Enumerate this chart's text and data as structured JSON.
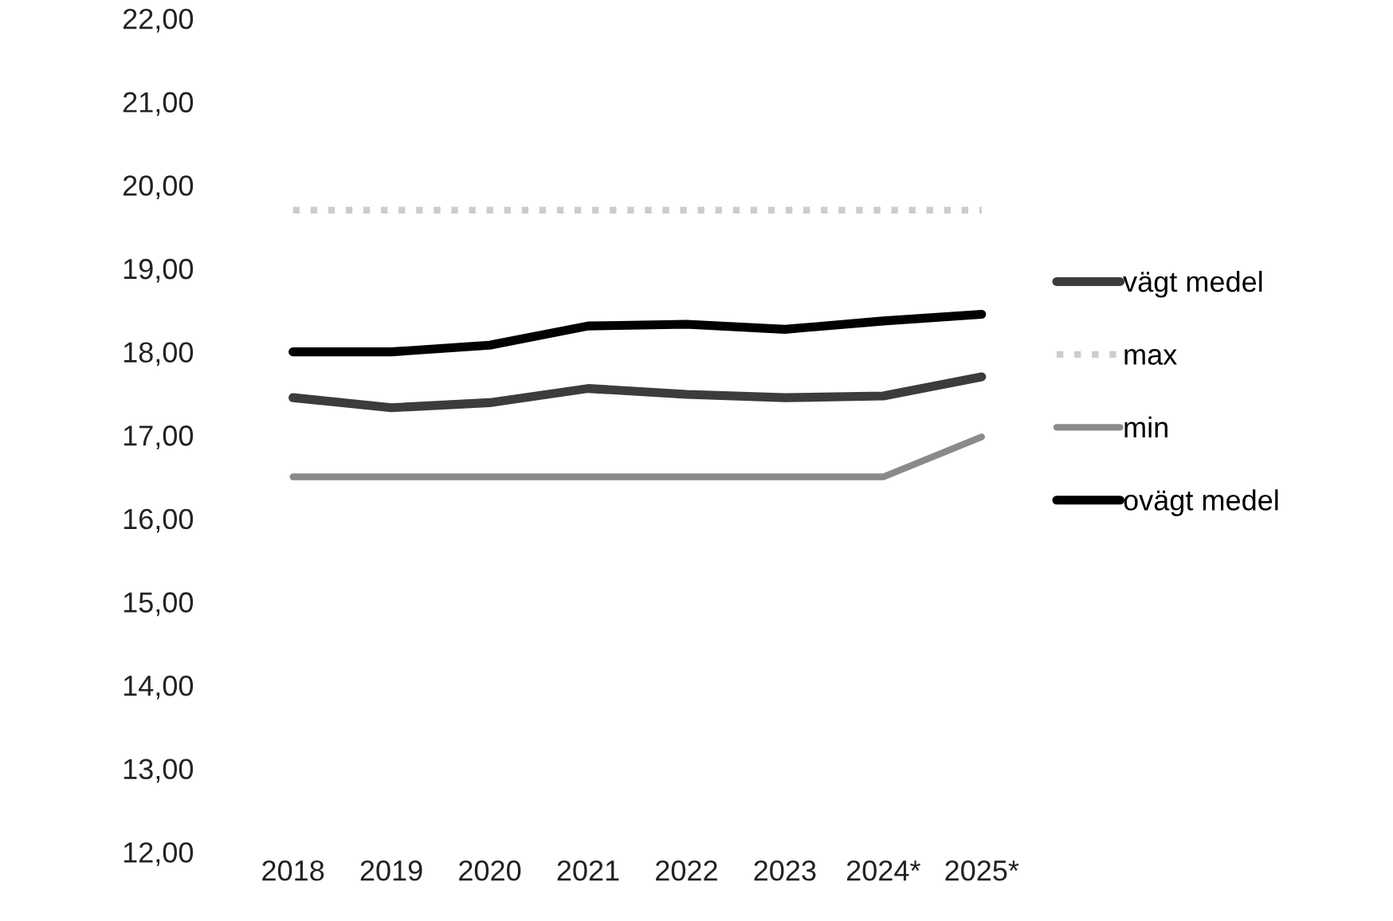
{
  "chart_data": {
    "type": "line",
    "categories": [
      "2018",
      "2019",
      "2020",
      "2021",
      "2022",
      "2023",
      "2024*",
      "2025*"
    ],
    "series": [
      {
        "name": "vägt medel",
        "color": "#3c3c3c",
        "values": [
          17.45,
          17.33,
          17.39,
          17.56,
          17.49,
          17.45,
          17.47,
          17.7
        ]
      },
      {
        "name": "max",
        "color": "#cccccc",
        "line_style": "dotted",
        "values": [
          19.7,
          19.7,
          19.7,
          19.7,
          19.7,
          19.7,
          19.7,
          19.7
        ]
      },
      {
        "name": "min",
        "color": "#8a8a8a",
        "values": [
          16.5,
          16.5,
          16.5,
          16.5,
          16.5,
          16.5,
          16.5,
          16.98
        ]
      },
      {
        "name": "ovägt medel",
        "color": "#000000",
        "values": [
          18.0,
          18.0,
          18.08,
          18.31,
          18.33,
          18.27,
          18.37,
          18.45
        ]
      }
    ],
    "ylim": [
      12,
      22
    ],
    "yticks": [
      {
        "value": 12,
        "label": "12,00"
      },
      {
        "value": 13,
        "label": "13,00"
      },
      {
        "value": 14,
        "label": "14,00"
      },
      {
        "value": 15,
        "label": "15,00"
      },
      {
        "value": 16,
        "label": "16,00"
      },
      {
        "value": 17,
        "label": "17,00"
      },
      {
        "value": 18,
        "label": "18,00"
      },
      {
        "value": 19,
        "label": "19,00"
      },
      {
        "value": 20,
        "label": "20,00"
      },
      {
        "value": 21,
        "label": "21,00"
      },
      {
        "value": 22,
        "label": "22,00"
      }
    ],
    "grid": false,
    "legend": "right",
    "marker": "none"
  }
}
